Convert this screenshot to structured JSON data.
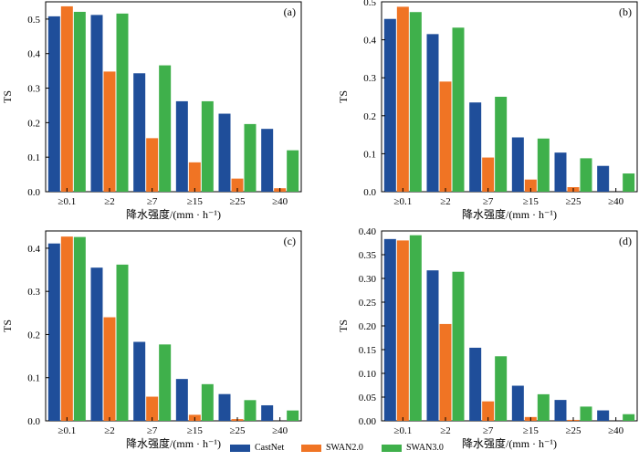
{
  "colors": {
    "CastNet": "#1f4e9a",
    "SWAN2.0": "#f07424",
    "SWAN3.0": "#3fb04b"
  },
  "legend": {
    "items": [
      {
        "label": "CastNet",
        "color": "#1f4e9a"
      },
      {
        "label": "SWAN2.0",
        "color": "#f07424"
      },
      {
        "label": "SWAN3.0",
        "color": "#3fb04b"
      }
    ]
  },
  "chart_data": [
    {
      "type": "bar",
      "panel_label": "(a)",
      "categories": [
        "≥0.1",
        "≥2",
        "≥7",
        "≥15",
        "≥25",
        "≥40"
      ],
      "xlabel": "降水强度/(mm · h⁻¹)",
      "ylabel": "TS",
      "ylim": [
        0,
        0.55
      ],
      "yticks": [
        "0.0",
        "0.1",
        "0.2",
        "0.3",
        "0.4",
        "0.5"
      ],
      "tick_values": [
        0,
        0.1,
        0.2,
        0.3,
        0.4,
        0.5
      ],
      "series": [
        {
          "name": "CastNet",
          "values": [
            0.508,
            0.512,
            0.343,
            0.262,
            0.226,
            0.182
          ]
        },
        {
          "name": "SWAN2.0",
          "values": [
            0.537,
            0.348,
            0.155,
            0.085,
            0.038,
            0.01
          ]
        },
        {
          "name": "SWAN3.0",
          "values": [
            0.521,
            0.516,
            0.366,
            0.262,
            0.196,
            0.12
          ]
        }
      ]
    },
    {
      "type": "bar",
      "panel_label": "(b)",
      "categories": [
        "≥0.1",
        "≥2",
        "≥7",
        "≥15",
        "≥25",
        "≥40"
      ],
      "xlabel": "降水强度/(mm · h⁻¹)",
      "ylabel": "TS",
      "ylim": [
        0,
        0.5
      ],
      "yticks": [
        "0.0",
        "0.1",
        "0.2",
        "0.3",
        "0.4",
        "0.5"
      ],
      "tick_values": [
        0,
        0.1,
        0.2,
        0.3,
        0.4,
        0.5
      ],
      "series": [
        {
          "name": "CastNet",
          "values": [
            0.455,
            0.415,
            0.235,
            0.143,
            0.103,
            0.068
          ]
        },
        {
          "name": "SWAN2.0",
          "values": [
            0.487,
            0.29,
            0.09,
            0.032,
            0.012,
            0.0
          ]
        },
        {
          "name": "SWAN3.0",
          "values": [
            0.473,
            0.432,
            0.25,
            0.14,
            0.088,
            0.048
          ]
        }
      ]
    },
    {
      "type": "bar",
      "panel_label": "(c)",
      "categories": [
        "≥0.1",
        "≥2",
        "≥7",
        "≥15",
        "≥25",
        "≥40"
      ],
      "xlabel": "降水强度/(mm · h⁻¹)",
      "ylabel": "TS",
      "ylim": [
        0,
        0.44
      ],
      "yticks": [
        "0.0",
        "0.1",
        "0.2",
        "0.3",
        "0.4"
      ],
      "tick_values": [
        0,
        0.1,
        0.2,
        0.3,
        0.4
      ],
      "series": [
        {
          "name": "CastNet",
          "values": [
            0.411,
            0.355,
            0.183,
            0.097,
            0.062,
            0.036
          ]
        },
        {
          "name": "SWAN2.0",
          "values": [
            0.427,
            0.24,
            0.056,
            0.014,
            0.004,
            0.0
          ]
        },
        {
          "name": "SWAN3.0",
          "values": [
            0.426,
            0.362,
            0.177,
            0.085,
            0.048,
            0.024
          ]
        }
      ]
    },
    {
      "type": "bar",
      "panel_label": "(d)",
      "categories": [
        "≥0.1",
        "≥2",
        "≥7",
        "≥15",
        "≥25",
        "≥40"
      ],
      "xlabel": "降水强度/(mm · h⁻¹)",
      "ylabel": "TS",
      "ylim": [
        0,
        0.4
      ],
      "yticks": [
        "0.00",
        "0.05",
        "0.10",
        "0.15",
        "0.20",
        "0.25",
        "0.30",
        "0.35",
        "0.40"
      ],
      "tick_values": [
        0,
        0.05,
        0.1,
        0.15,
        0.2,
        0.25,
        0.3,
        0.35,
        0.4
      ],
      "series": [
        {
          "name": "CastNet",
          "values": [
            0.383,
            0.317,
            0.154,
            0.074,
            0.044,
            0.022
          ]
        },
        {
          "name": "SWAN2.0",
          "values": [
            0.38,
            0.204,
            0.041,
            0.008,
            0.002,
            0.0
          ]
        },
        {
          "name": "SWAN3.0",
          "values": [
            0.391,
            0.314,
            0.136,
            0.056,
            0.03,
            0.014
          ]
        }
      ]
    }
  ]
}
